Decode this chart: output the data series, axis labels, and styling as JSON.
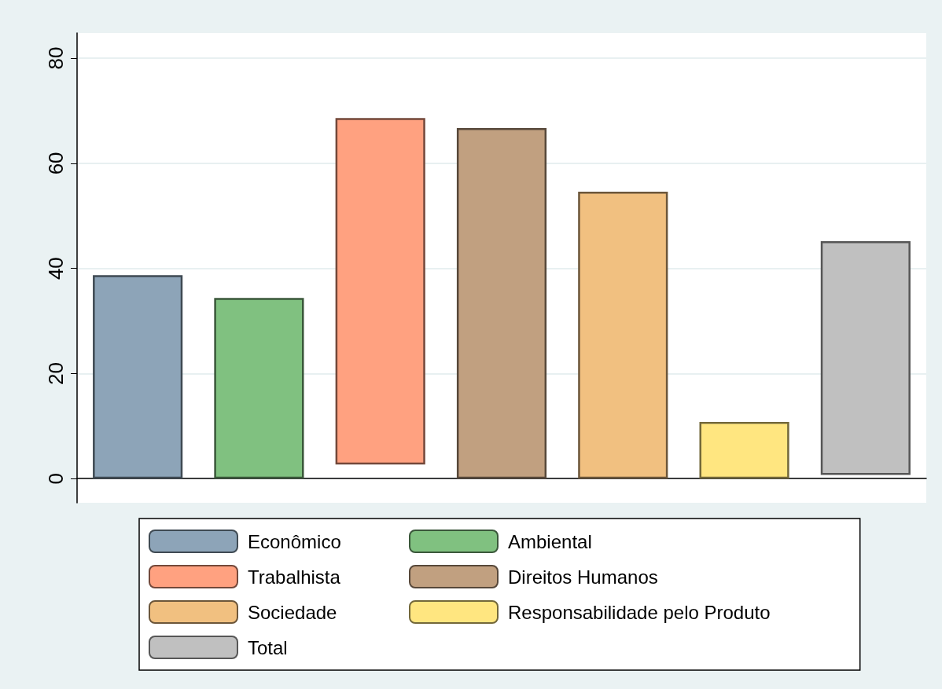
{
  "chart_data": {
    "type": "bar",
    "categories": [
      null,
      null,
      null,
      null,
      null,
      null,
      null
    ],
    "series": [
      {
        "name": "Econômico",
        "color": "#8da4b8",
        "values": [
          38.7,
          null,
          null,
          null,
          null,
          null,
          null
        ]
      },
      {
        "name": "Ambiental",
        "color": "#80c180",
        "values": [
          null,
          34.4,
          null,
          null,
          null,
          null,
          null
        ]
      },
      {
        "name": "Trabalhista",
        "color": "#ffa180",
        "values": [
          null,
          null,
          65.9,
          null,
          null,
          null,
          null
        ],
        "base": [
          null,
          null,
          2.7,
          null,
          null,
          null,
          null
        ]
      },
      {
        "name": "Direitos Humanos",
        "color": "#c1a080",
        "values": [
          null,
          null,
          null,
          66.7,
          null,
          null,
          null
        ]
      },
      {
        "name": "Sociedade",
        "color": "#f1c080",
        "values": [
          null,
          null,
          null,
          null,
          54.6,
          null,
          null
        ]
      },
      {
        "name": "Responsabilidade pelo Produto",
        "color": "#ffe680",
        "values": [
          null,
          null,
          null,
          null,
          null,
          10.8,
          null
        ]
      },
      {
        "name": "Total",
        "color": "#c0c0c0",
        "values": [
          null,
          null,
          null,
          null,
          null,
          null,
          44.5
        ],
        "base": [
          null,
          null,
          null,
          null,
          null,
          null,
          0.7
        ]
      }
    ],
    "ylim": [
      -4.6,
      84.8
    ],
    "yticks": [
      0,
      20,
      40,
      60,
      80
    ],
    "grid": "y",
    "legend": "bottom",
    "tick_labels": "y"
  }
}
